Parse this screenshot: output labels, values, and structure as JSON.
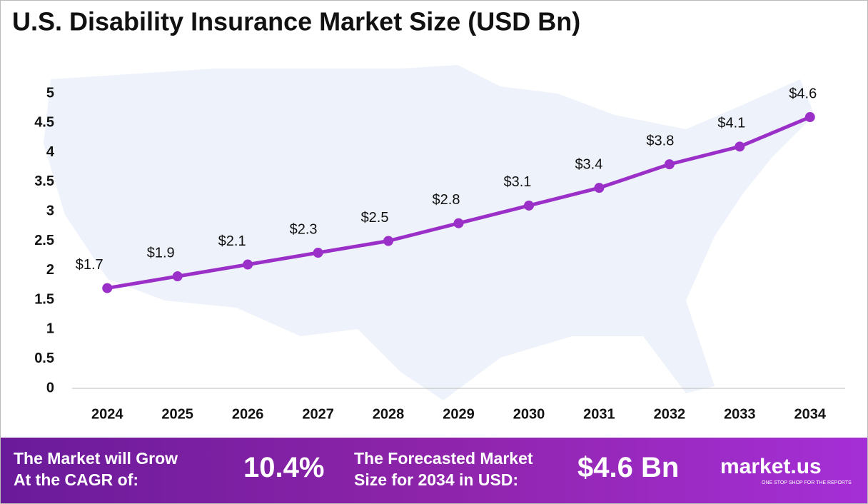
{
  "chart_data": {
    "type": "line",
    "title": "U.S. Disability Insurance Market Size (USD Bn)",
    "categories": [
      "2024",
      "2025",
      "2026",
      "2027",
      "2028",
      "2029",
      "2030",
      "2031",
      "2032",
      "2033",
      "2034"
    ],
    "values": [
      1.7,
      1.9,
      2.1,
      2.3,
      2.5,
      2.8,
      3.1,
      3.4,
      3.8,
      4.1,
      4.6
    ],
    "value_labels": [
      "$1.7",
      "$1.9",
      "$2.1",
      "$2.3",
      "$2.5",
      "$2.8",
      "$3.1",
      "$3.4",
      "$3.8",
      "$4.1",
      "$4.6"
    ],
    "color": "#9b30c8",
    "ylim": [
      0,
      5
    ],
    "yticks": [
      0,
      0.5,
      1,
      1.5,
      2,
      2.5,
      3,
      3.5,
      4,
      4.5,
      5
    ],
    "grid": false
  },
  "footer": {
    "cagr_label": [
      "The Market will Grow",
      "At the CAGR of:"
    ],
    "cagr_value": "10.4%",
    "forecast_label": [
      "The Forecasted Market",
      "Size for 2034 in USD:"
    ],
    "forecast_value": "$4.6 Bn",
    "brand": "market.us",
    "tagline": "ONE STOP SHOP FOR THE REPORTS"
  }
}
